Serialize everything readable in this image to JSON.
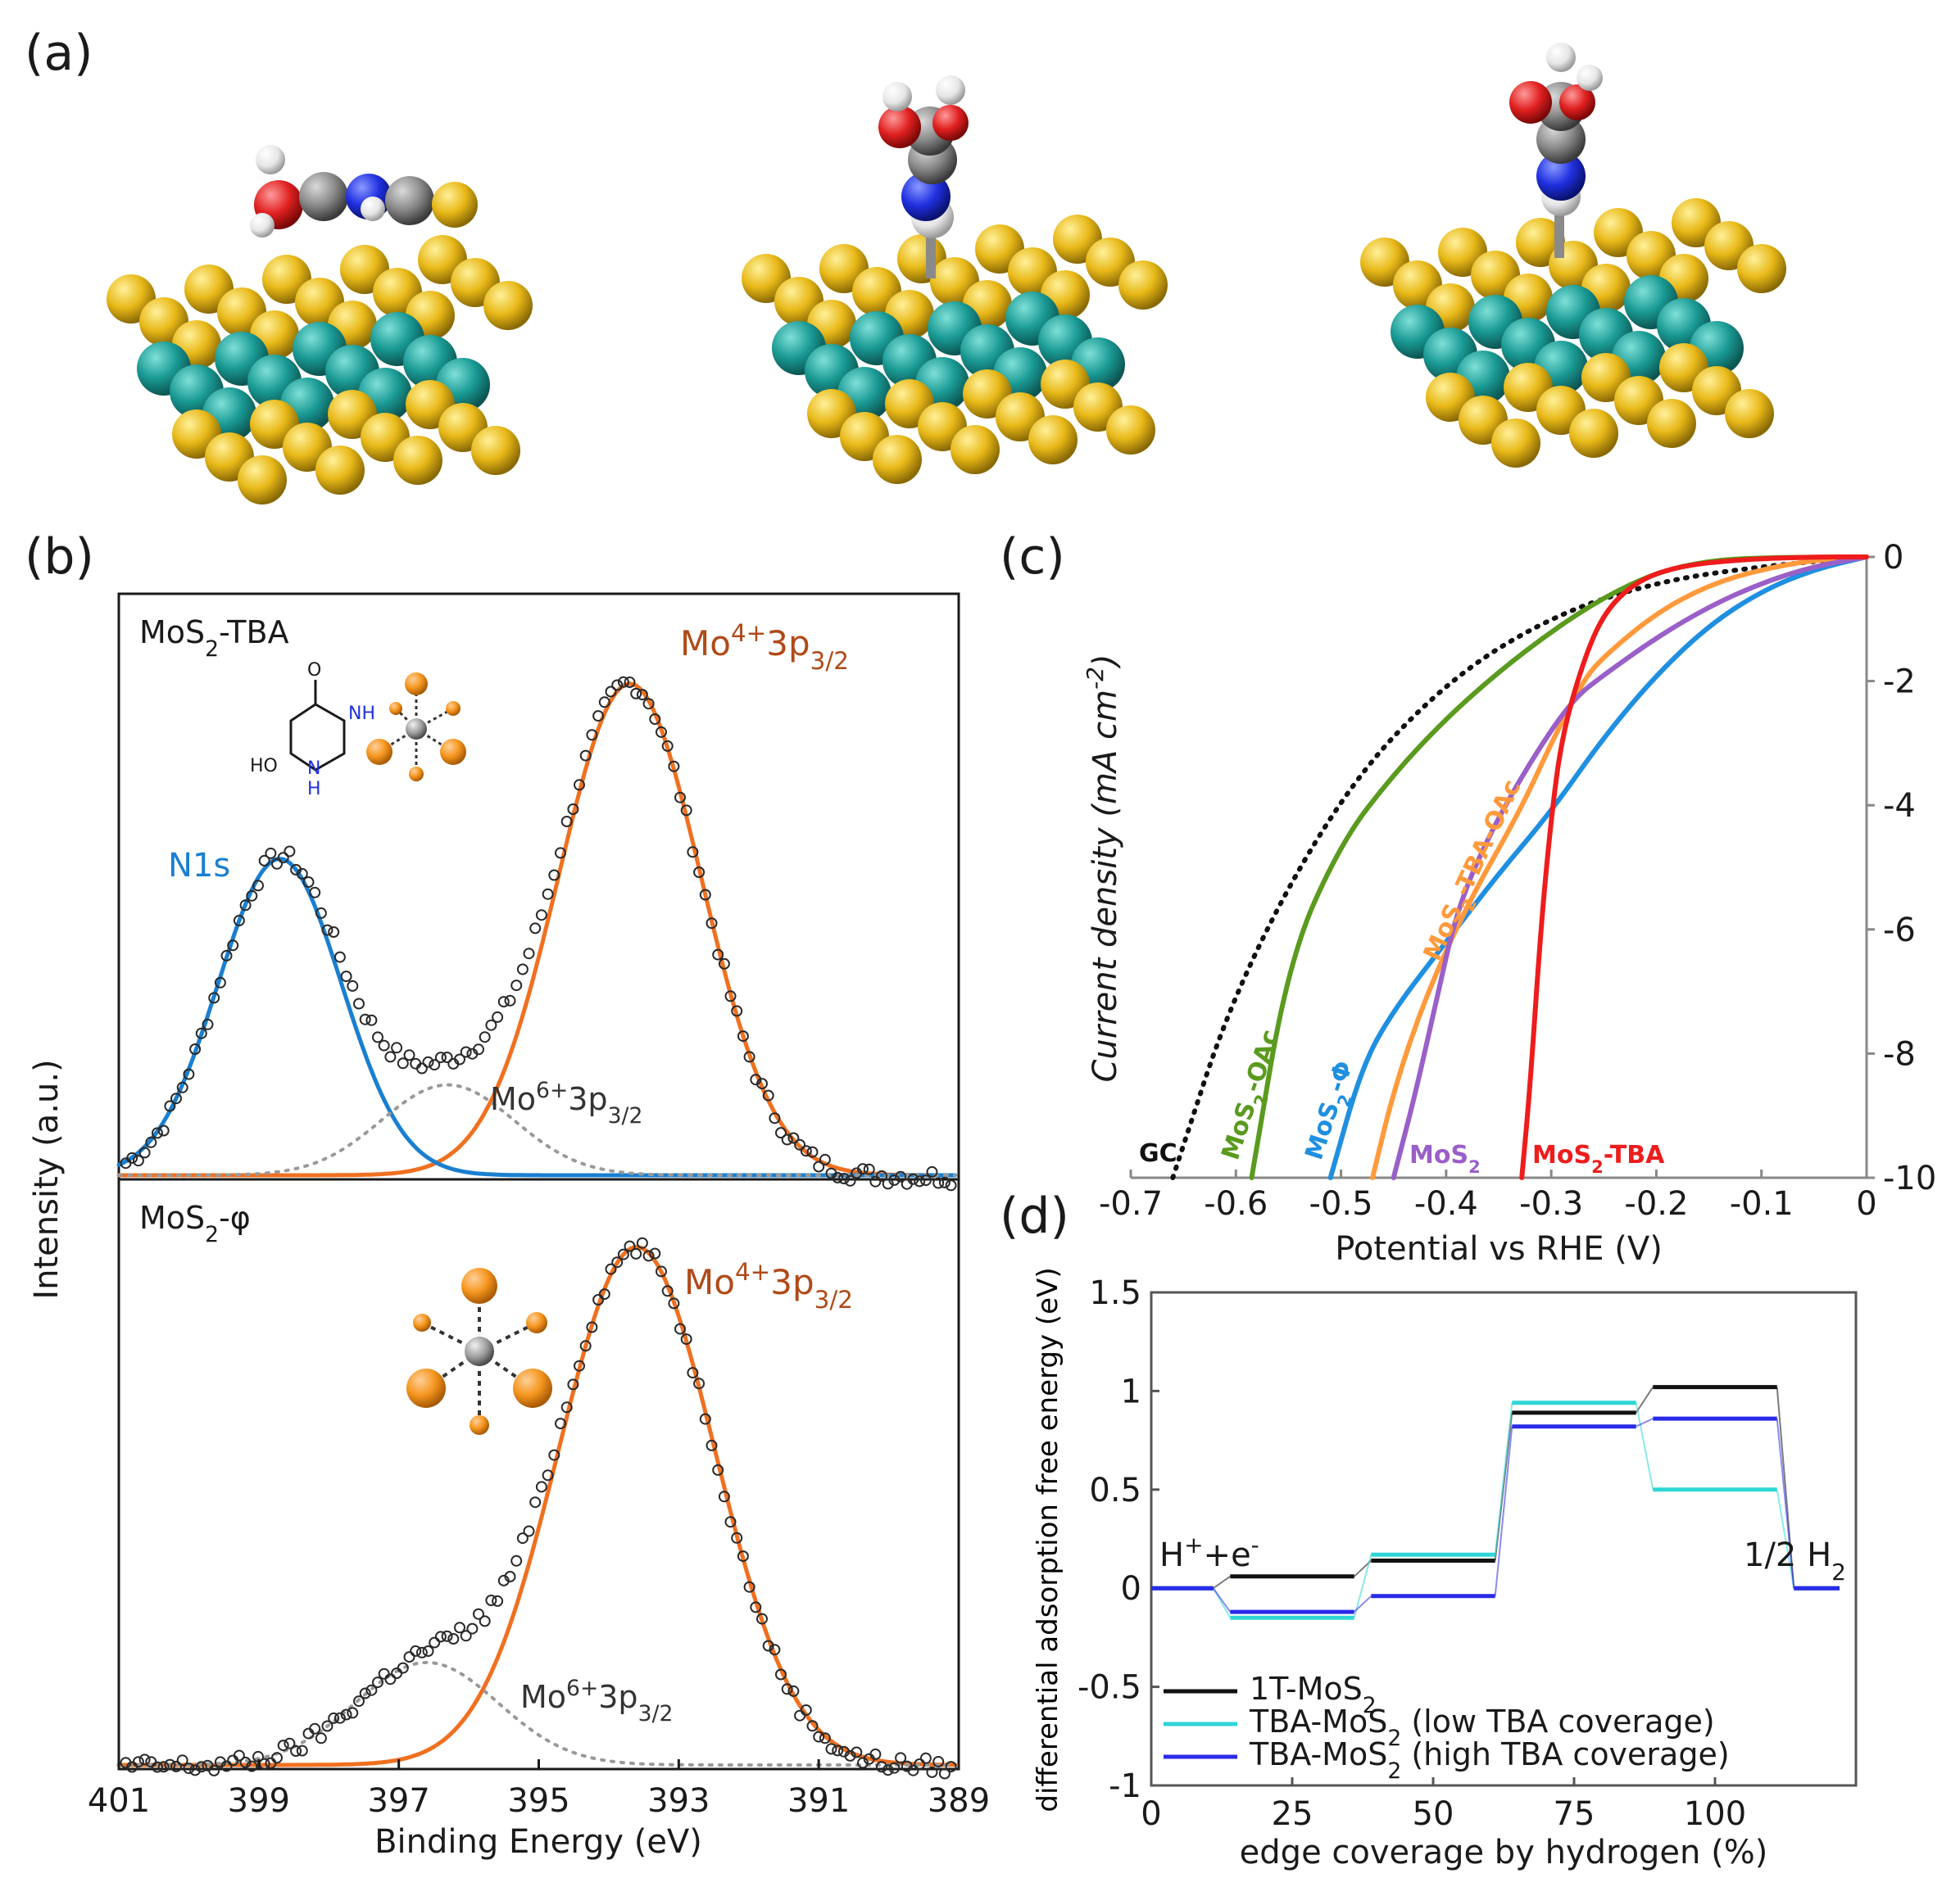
{
  "panels": {
    "a": "(a)",
    "b": "(b)",
    "c": "(c)",
    "d": "(d)"
  },
  "colors": {
    "mo_atom": "#1a9a94",
    "s_atom": "#e8b818",
    "n_atom": "#2030e0",
    "o_atom": "#e02020",
    "c_atom": "#8a8a8a",
    "h_atom": "#e6e6e6",
    "mo4_fit": "#f07020",
    "n1s_fit": "#1a7fd0",
    "mo6_fit": "#999999",
    "gc": "#111111",
    "oac": "#5a9a1e",
    "phi": "#1f8fe0",
    "mos2": "#9a5fc8",
    "tba_oac": "#ff9a3c",
    "tba": "#ee1c1c",
    "d_1t": "#111111",
    "d_low": "#2fd6d6",
    "d_high": "#2a2ae8"
  },
  "chart_data": [
    {
      "id": "b",
      "type": "line",
      "xlabel": "Binding Energy (eV)",
      "ylabel": "Intensity (a.u.)",
      "xlim": [
        401,
        389
      ],
      "x_reversed": true,
      "xticks": [
        "401",
        "399",
        "397",
        "395",
        "393",
        "391",
        "389"
      ],
      "subpanels": [
        {
          "label": "MoS",
          "label_sub": "2",
          "label_suffix": "-TBA",
          "annotations": {
            "mo4": {
              "main": "Mo",
              "sup": "4+",
              "mid": "3p",
              "sub": "3/2"
            },
            "mo6": {
              "main": "Mo",
              "sup": "6+",
              "mid": "3p",
              "sub": "3/2"
            },
            "n1s": "N1s",
            "ho": "HO",
            "nh_top": "NH",
            "nh_bottom": "H",
            "n_bottom": "N",
            "carbonyl_o": "O"
          },
          "series": [
            {
              "name": "Mo4+ 3p3/2",
              "peak_ev": 393.7,
              "height": 0.87,
              "sigma_ev": 1.02
            },
            {
              "name": "N1s",
              "peak_ev": 398.7,
              "height": 0.56,
              "sigma_ev": 0.88
            },
            {
              "name": "Mo6+ 3p3/2",
              "peak_ev": 396.3,
              "height": 0.16,
              "sigma_ev": 0.95
            }
          ]
        },
        {
          "label": "MoS",
          "label_sub": "2",
          "label_suffix": "-φ",
          "annotations": {
            "mo4": {
              "main": "Mo",
              "sup": "4+",
              "mid": "3p",
              "sub": "3/2"
            },
            "mo6": {
              "main": "Mo",
              "sup": "6+",
              "mid": "3p",
              "sub": "3/2"
            }
          },
          "series": [
            {
              "name": "Mo4+ 3p3/2",
              "peak_ev": 393.6,
              "height": 0.91,
              "sigma_ev": 1.12
            },
            {
              "name": "Mo6+ 3p3/2",
              "peak_ev": 396.6,
              "height": 0.18,
              "sigma_ev": 1.02
            }
          ]
        }
      ]
    },
    {
      "id": "c",
      "type": "line",
      "xlabel": "Potential vs RHE (V)",
      "ylabel": "Current density (mA cm",
      "ylabel_sup": "-2",
      "ylabel_end": ")",
      "xlim": [
        -0.7,
        0
      ],
      "ylim": [
        -10,
        0
      ],
      "xticks": [
        "-0.7",
        "-0.6",
        "-0.5",
        "-0.4",
        "-0.3",
        "-0.2",
        "-0.1",
        "0"
      ],
      "yticks": [
        "0",
        "-2",
        "-4",
        "-6",
        "-8",
        "-10"
      ],
      "series": [
        {
          "name": "GC",
          "label": "GC",
          "style": "dotted",
          "points": [
            [
              -0.66,
              -10
            ],
            [
              -0.6,
              -6.9
            ],
            [
              -0.5,
              -3.8
            ],
            [
              -0.4,
              -2.0
            ],
            [
              -0.3,
              -0.95
            ],
            [
              -0.2,
              -0.4
            ],
            [
              -0.1,
              -0.15
            ],
            [
              0,
              0
            ]
          ]
        },
        {
          "name": "MoS2-OAc",
          "label": "MoS",
          "label_sub": "2",
          "label_suffix": "-OAc",
          "points": [
            [
              -0.585,
              -10
            ],
            [
              -0.55,
              -6.5
            ],
            [
              -0.5,
              -4.6
            ],
            [
              -0.45,
              -3.5
            ],
            [
              -0.4,
              -2.6
            ],
            [
              -0.35,
              -1.85
            ],
            [
              -0.3,
              -1.2
            ],
            [
              -0.25,
              -0.65
            ],
            [
              -0.2,
              -0.25
            ],
            [
              -0.15,
              -0.06
            ],
            [
              -0.1,
              -0.01
            ],
            [
              0,
              0
            ]
          ]
        },
        {
          "name": "MoS2-Φ",
          "label": "MoS",
          "label_sub": "2",
          "label_suffix": "-Φ",
          "points": [
            [
              -0.51,
              -10
            ],
            [
              -0.48,
              -8.2
            ],
            [
              -0.45,
              -7.3
            ],
            [
              -0.4,
              -6.2
            ],
            [
              -0.35,
              -5.1
            ],
            [
              -0.3,
              -4.1
            ],
            [
              -0.25,
              -2.9
            ],
            [
              -0.2,
              -1.9
            ],
            [
              -0.15,
              -1.1
            ],
            [
              -0.1,
              -0.55
            ],
            [
              -0.05,
              -0.2
            ],
            [
              0,
              0
            ]
          ]
        },
        {
          "name": "MoS2-TBA-OAc",
          "label": "MoS",
          "label_sub": "2",
          "label_suffix": "-TBA-OAc",
          "points": [
            [
              -0.47,
              -10
            ],
            [
              -0.45,
              -8.6
            ],
            [
              -0.42,
              -7.1
            ],
            [
              -0.38,
              -5.6
            ],
            [
              -0.33,
              -4.1
            ],
            [
              -0.3,
              -3.0
            ],
            [
              -0.27,
              -2.0
            ],
            [
              -0.25,
              -1.6
            ],
            [
              -0.2,
              -0.9
            ],
            [
              -0.15,
              -0.45
            ],
            [
              -0.1,
              -0.2
            ],
            [
              -0.05,
              -0.05
            ],
            [
              0,
              0
            ]
          ]
        },
        {
          "name": "MoS2",
          "label": "MoS",
          "label_sub": "2",
          "points": [
            [
              -0.45,
              -10
            ],
            [
              -0.43,
              -8.7
            ],
            [
              -0.41,
              -7.2
            ],
            [
              -0.39,
              -5.7
            ],
            [
              -0.36,
              -4.5
            ],
            [
              -0.32,
              -3.3
            ],
            [
              -0.28,
              -2.3
            ],
            [
              -0.25,
              -1.9
            ],
            [
              -0.2,
              -1.3
            ],
            [
              -0.15,
              -0.8
            ],
            [
              -0.1,
              -0.42
            ],
            [
              -0.05,
              -0.15
            ],
            [
              0,
              0
            ]
          ]
        },
        {
          "name": "MoS2-TBA",
          "label": "MoS",
          "label_sub": "2",
          "label_suffix": "-TBA",
          "points": [
            [
              -0.328,
              -10
            ],
            [
              -0.32,
              -8.5
            ],
            [
              -0.31,
              -6.0
            ],
            [
              -0.3,
              -4.2
            ],
            [
              -0.29,
              -2.9
            ],
            [
              -0.27,
              -1.7
            ],
            [
              -0.25,
              -0.9
            ],
            [
              -0.22,
              -0.4
            ],
            [
              -0.18,
              -0.15
            ],
            [
              -0.12,
              -0.04
            ],
            [
              -0.05,
              0
            ],
            [
              0,
              0
            ]
          ]
        }
      ]
    },
    {
      "id": "d",
      "type": "line",
      "xlabel": "edge coverage by hydrogen (%)",
      "ylabel": "differential adsorption free energy (eV)",
      "xlim": [
        0,
        125
      ],
      "ylim": [
        -1,
        1.5
      ],
      "xticks": [
        "0",
        "25",
        "50",
        "75",
        "100"
      ],
      "yticks": [
        "1.5",
        "1",
        "0.5",
        "0",
        "-0.5",
        "-1"
      ],
      "annotations": {
        "start": {
          "main": "H",
          "sup1": "+",
          "mid": "+e",
          "sup2": "-"
        },
        "end": {
          "main": "1/2 H",
          "sub": "2"
        }
      },
      "legend_position": "bottom-left",
      "series": [
        {
          "name": "1T-MoS2",
          "legend": "1T-MoS",
          "legend_sub": "2",
          "legend_suffix": "",
          "levels": [
            [
              0,
              0
            ],
            [
              25,
              0.06
            ],
            [
              50,
              0.14
            ],
            [
              75,
              0.89
            ],
            [
              100,
              1.02
            ],
            [
              125,
              0
            ]
          ]
        },
        {
          "name": "TBA-MoS2 (low TBA coverage)",
          "legend": "TBA-MoS",
          "legend_sub": "2",
          "legend_suffix": " (low TBA coverage)",
          "levels": [
            [
              0,
              0
            ],
            [
              25,
              -0.15
            ],
            [
              50,
              0.17
            ],
            [
              75,
              0.94
            ],
            [
              100,
              0.5
            ],
            [
              125,
              0
            ]
          ]
        },
        {
          "name": "TBA-MoS2 (high TBA coverage)",
          "legend": "TBA-MoS",
          "legend_sub": "2",
          "legend_suffix": " (high TBA coverage)",
          "levels": [
            [
              0,
              0
            ],
            [
              25,
              -0.12
            ],
            [
              50,
              -0.04
            ],
            [
              75,
              0.82
            ],
            [
              100,
              0.86
            ],
            [
              125,
              0
            ]
          ]
        }
      ]
    }
  ]
}
